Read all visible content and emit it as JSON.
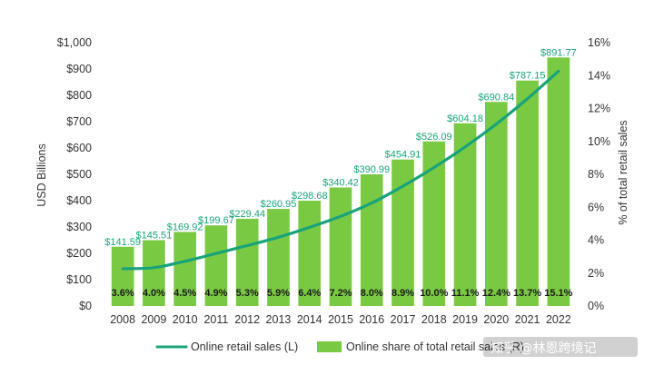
{
  "chart_data": {
    "type": "bar",
    "categories": [
      "2008",
      "2009",
      "2010",
      "2011",
      "2012",
      "2013",
      "2014",
      "2015",
      "2016",
      "2017",
      "2018",
      "2019",
      "2020",
      "2021",
      "2022"
    ],
    "series": [
      {
        "name": "Online retail sales (L)",
        "axis": "left",
        "render": "line",
        "color": "#19a37a",
        "values": [
          141.59,
          145.51,
          169.92,
          199.67,
          229.44,
          260.95,
          298.68,
          340.42,
          390.99,
          454.91,
          526.09,
          604.18,
          690.84,
          787.15,
          891.77
        ],
        "labels": [
          "$141.59",
          "$145.51",
          "$169.92",
          "$199.67",
          "$229.44",
          "$260.95",
          "$298.68",
          "$340.42",
          "$390.99",
          "$454.91",
          "$526.09",
          "$604.18",
          "$690.84",
          "$787.15",
          "$891.77"
        ]
      },
      {
        "name": "Online share of total retail sales (R)",
        "axis": "right",
        "render": "bar",
        "color": "#7ac943",
        "values": [
          3.6,
          4.0,
          4.5,
          4.9,
          5.3,
          5.9,
          6.4,
          7.2,
          8.0,
          8.9,
          10.0,
          11.1,
          12.4,
          13.7,
          15.1
        ],
        "labels": [
          "3.6%",
          "4.0%",
          "4.5%",
          "4.9%",
          "5.3%",
          "5.9%",
          "6.4%",
          "7.2%",
          "8.0%",
          "8.9%",
          "10.0%",
          "11.1%",
          "12.4%",
          "13.7%",
          "15.1%"
        ]
      }
    ],
    "ylabel_left": "USD Billions",
    "ylabel_right": "% of total retail sales",
    "ylim_left": [
      0,
      1000
    ],
    "ylim_right": [
      0,
      16
    ],
    "yticks_left": [
      "$0",
      "$100",
      "$200",
      "$300",
      "$400",
      "$500",
      "$600",
      "$700",
      "$800",
      "$900",
      "$1,000"
    ],
    "yticks_right": [
      "0%",
      "2%",
      "4%",
      "6%",
      "8%",
      "10%",
      "12%",
      "14%",
      "16%"
    ],
    "grid": false,
    "legend_position": "bottom"
  },
  "watermark": "知乎 @林恩跨境记"
}
